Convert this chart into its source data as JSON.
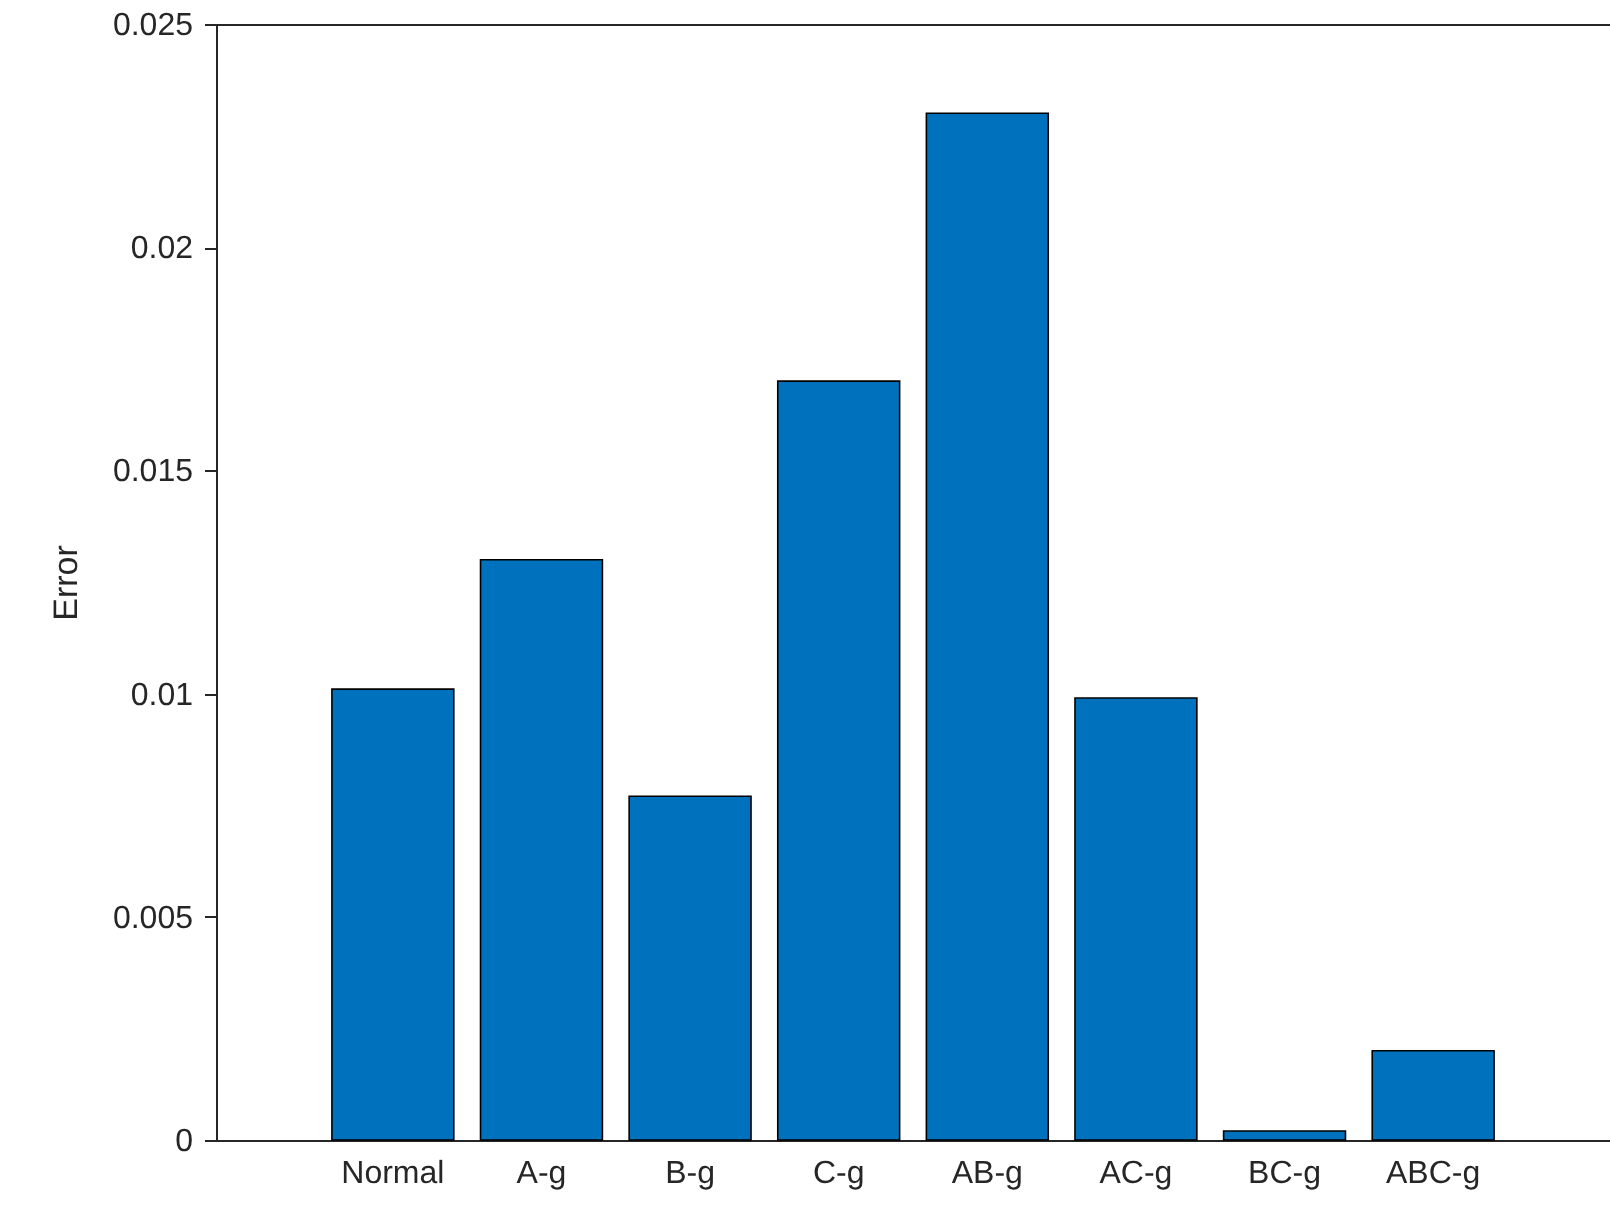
{
  "chart_data": {
    "type": "bar",
    "ylabel": "Error",
    "categories": [
      "Normal",
      "A-g",
      "B-g",
      "C-g",
      "AB-g",
      "AC-g",
      "BC-g",
      "ABC-g"
    ],
    "values": [
      0.0101,
      0.013,
      0.0077,
      0.017,
      0.023,
      0.0099,
      0.0002,
      0.002
    ],
    "color": "#0072bd",
    "ylim": [
      0,
      0.025
    ],
    "yticks": [
      0,
      0.005,
      0.01,
      0.015,
      0.02,
      0.025
    ],
    "grid": false
  }
}
